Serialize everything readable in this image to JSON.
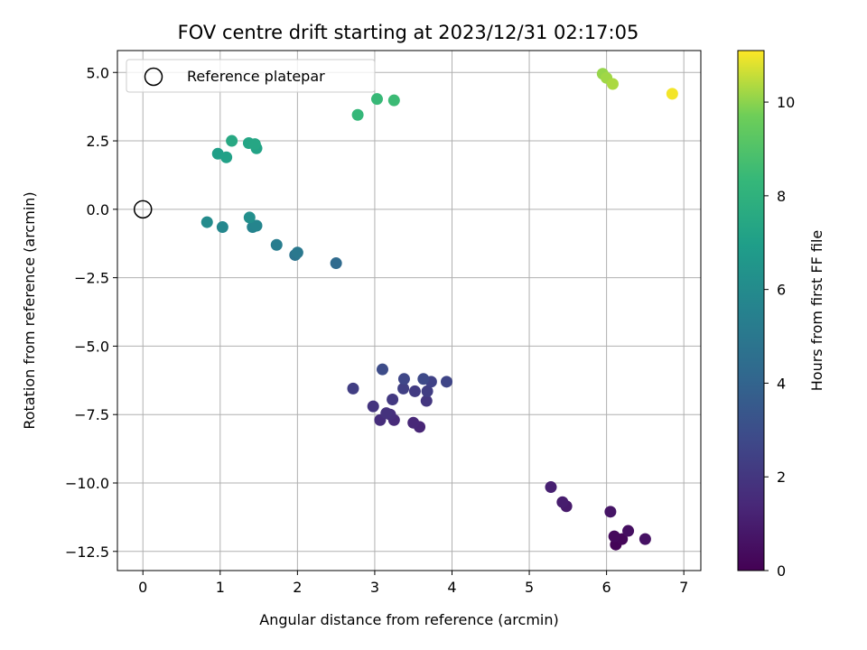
{
  "chart_data": {
    "type": "scatter",
    "title": "FOV centre drift starting at 2023/12/31 02:17:05",
    "xlabel": "Angular distance from reference (arcmin)",
    "ylabel": "Rotation from reference (arcmin)",
    "xlim": [
      -0.33,
      7.22
    ],
    "ylim": [
      -13.2,
      5.8
    ],
    "x_ticks": [
      0,
      1,
      2,
      3,
      4,
      5,
      6,
      7
    ],
    "x_tick_labels": [
      "0",
      "1",
      "2",
      "3",
      "4",
      "5",
      "6",
      "7"
    ],
    "y_ticks": [
      5.0,
      2.5,
      0.0,
      -2.5,
      -5.0,
      -7.5,
      -10.0,
      -12.5
    ],
    "y_tick_labels": [
      "5.0",
      "2.5",
      "0.0",
      "−2.5",
      "−5.0",
      "−7.5",
      "−10.0",
      "−12.5"
    ],
    "grid": true,
    "legend": {
      "placement": "top-left",
      "entries": [
        "Reference platepar"
      ]
    },
    "reference_point": {
      "x": 0,
      "y": 0,
      "label": "Reference platepar"
    },
    "colorbar": {
      "label": "Hours from first FF file",
      "range": [
        0,
        11.1
      ],
      "ticks": [
        0,
        2,
        4,
        6,
        8,
        10
      ],
      "tick_labels": [
        "0",
        "2",
        "4",
        "6",
        "8",
        "10"
      ],
      "colormap": "viridis"
    },
    "points": [
      {
        "x": 6.12,
        "y": -12.25,
        "hours": 0.1
      },
      {
        "x": 6.2,
        "y": -12.05,
        "hours": 0.2
      },
      {
        "x": 6.1,
        "y": -11.95,
        "hours": 0.3
      },
      {
        "x": 6.28,
        "y": -11.75,
        "hours": 0.5
      },
      {
        "x": 6.5,
        "y": -12.05,
        "hours": 0.6
      },
      {
        "x": 6.05,
        "y": -11.05,
        "hours": 0.7
      },
      {
        "x": 5.48,
        "y": -10.85,
        "hours": 0.9
      },
      {
        "x": 5.43,
        "y": -10.7,
        "hours": 1.0
      },
      {
        "x": 5.28,
        "y": -10.15,
        "hours": 1.1
      },
      {
        "x": 3.58,
        "y": -7.95,
        "hours": 1.3
      },
      {
        "x": 3.5,
        "y": -7.8,
        "hours": 1.4
      },
      {
        "x": 3.25,
        "y": -7.7,
        "hours": 1.5
      },
      {
        "x": 3.07,
        "y": -7.7,
        "hours": 1.6
      },
      {
        "x": 3.2,
        "y": -7.5,
        "hours": 1.7
      },
      {
        "x": 3.15,
        "y": -7.45,
        "hours": 1.8
      },
      {
        "x": 2.98,
        "y": -7.2,
        "hours": 1.9
      },
      {
        "x": 3.67,
        "y": -7.0,
        "hours": 2.0
      },
      {
        "x": 3.23,
        "y": -6.95,
        "hours": 2.1
      },
      {
        "x": 3.52,
        "y": -6.65,
        "hours": 2.2
      },
      {
        "x": 3.68,
        "y": -6.65,
        "hours": 2.3
      },
      {
        "x": 2.72,
        "y": -6.55,
        "hours": 2.3
      },
      {
        "x": 3.37,
        "y": -6.55,
        "hours": 2.4
      },
      {
        "x": 3.73,
        "y": -6.3,
        "hours": 2.5
      },
      {
        "x": 3.93,
        "y": -6.3,
        "hours": 2.6
      },
      {
        "x": 3.38,
        "y": -6.2,
        "hours": 2.7
      },
      {
        "x": 3.63,
        "y": -6.2,
        "hours": 2.8
      },
      {
        "x": 3.1,
        "y": -5.85,
        "hours": 2.9
      },
      {
        "x": 2.5,
        "y": -1.97,
        "hours": 4.3
      },
      {
        "x": 1.97,
        "y": -1.67,
        "hours": 4.8
      },
      {
        "x": 2.0,
        "y": -1.58,
        "hours": 5.0
      },
      {
        "x": 1.73,
        "y": -1.3,
        "hours": 5.3
      },
      {
        "x": 1.42,
        "y": -0.65,
        "hours": 5.6
      },
      {
        "x": 1.47,
        "y": -0.6,
        "hours": 5.7
      },
      {
        "x": 1.03,
        "y": -0.65,
        "hours": 5.8
      },
      {
        "x": 0.83,
        "y": -0.47,
        "hours": 6.0
      },
      {
        "x": 1.38,
        "y": -0.3,
        "hours": 6.2
      },
      {
        "x": 0.97,
        "y": 2.03,
        "hours": 7.0
      },
      {
        "x": 1.08,
        "y": 1.9,
        "hours": 7.1
      },
      {
        "x": 1.47,
        "y": 2.23,
        "hours": 7.2
      },
      {
        "x": 1.37,
        "y": 2.42,
        "hours": 7.3
      },
      {
        "x": 1.45,
        "y": 2.38,
        "hours": 7.4
      },
      {
        "x": 1.15,
        "y": 2.5,
        "hours": 7.5
      },
      {
        "x": 2.78,
        "y": 3.45,
        "hours": 8.3
      },
      {
        "x": 3.03,
        "y": 4.03,
        "hours": 8.4
      },
      {
        "x": 3.25,
        "y": 3.98,
        "hours": 8.5
      },
      {
        "x": 5.95,
        "y": 4.95,
        "hours": 10.1
      },
      {
        "x": 6.0,
        "y": 4.8,
        "hours": 10.2
      },
      {
        "x": 6.08,
        "y": 4.58,
        "hours": 10.3
      },
      {
        "x": 6.85,
        "y": 4.22,
        "hours": 11.0
      }
    ]
  }
}
